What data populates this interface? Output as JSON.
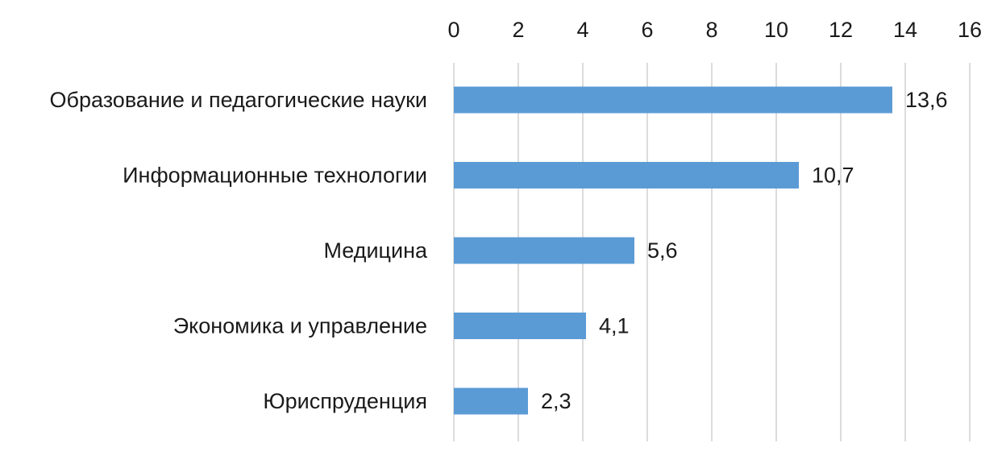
{
  "chart_data": {
    "type": "bar",
    "orientation": "horizontal",
    "categories": [
      "Образование и педагогические науки",
      "Информационные технологии",
      "Медицина",
      "Экономика и управление",
      "Юриспруденция"
    ],
    "values": [
      13.6,
      10.7,
      5.6,
      4.1,
      2.3
    ],
    "value_labels": [
      "13,6",
      "10,7",
      "5,6",
      "4,1",
      "2,3"
    ],
    "title": "",
    "xlabel": "",
    "ylabel": "",
    "xlim": [
      0,
      16
    ],
    "x_ticks": [
      0,
      2,
      4,
      6,
      8,
      10,
      12,
      14,
      16
    ],
    "x_tick_labels": [
      "0",
      "2",
      "4",
      "6",
      "8",
      "10",
      "12",
      "14",
      "16"
    ],
    "x_axis_position": "top",
    "grid": true,
    "legend": "none",
    "bar_color": "#5b9bd5",
    "grid_color": "#d0d0d0"
  }
}
